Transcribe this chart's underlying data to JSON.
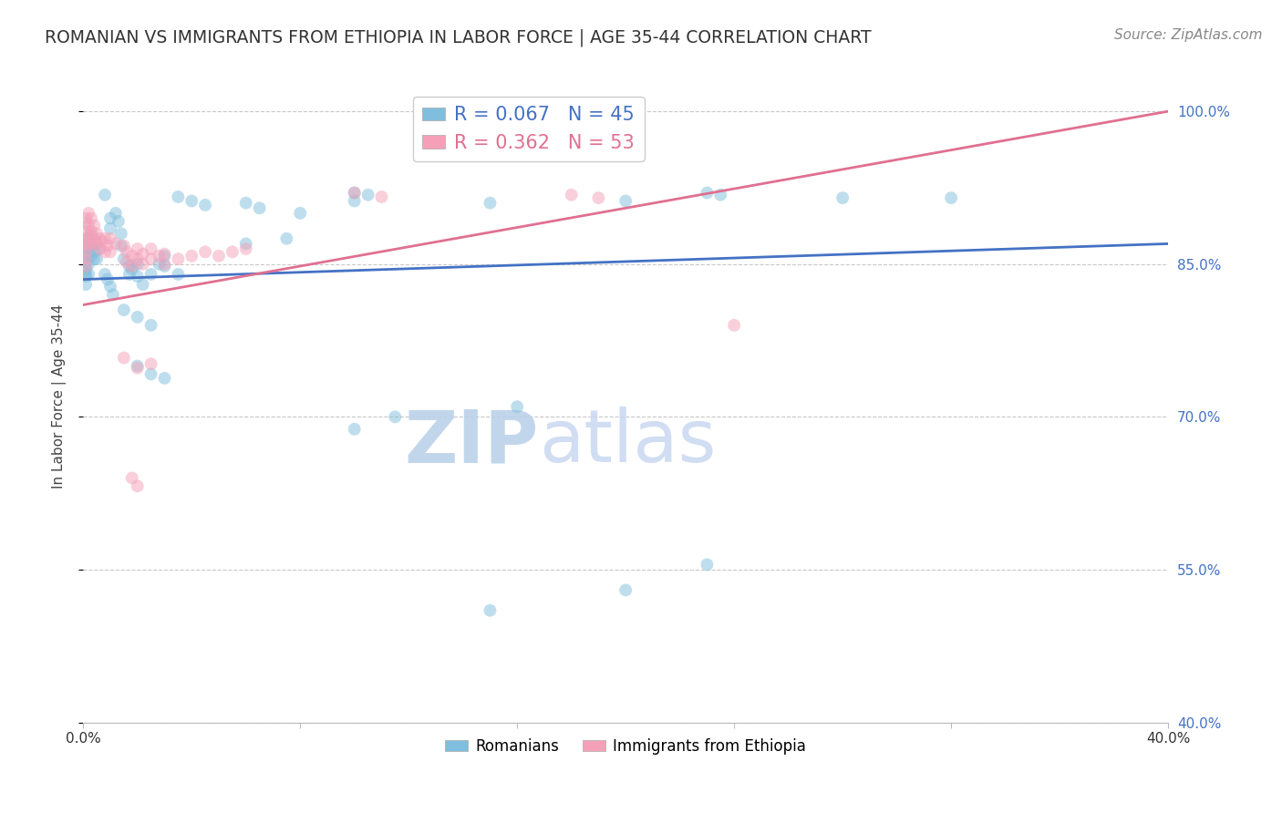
{
  "title": "ROMANIAN VS IMMIGRANTS FROM ETHIOPIA IN LABOR FORCE | AGE 35-44 CORRELATION CHART",
  "source": "Source: ZipAtlas.com",
  "ylabel": "In Labor Force | Age 35-44",
  "watermark_zip": "ZIP",
  "watermark_atlas": "atlas",
  "xlim": [
    0.0,
    0.4
  ],
  "ylim": [
    0.4,
    1.04
  ],
  "yticks": [
    0.4,
    0.55,
    0.7,
    0.85,
    1.0
  ],
  "ytick_labels": [
    "40.0%",
    "55.0%",
    "70.0%",
    "85.0%",
    "100.0%"
  ],
  "blue_points": [
    [
      0.001,
      0.87
    ],
    [
      0.001,
      0.865
    ],
    [
      0.001,
      0.858
    ],
    [
      0.001,
      0.852
    ],
    [
      0.001,
      0.845
    ],
    [
      0.001,
      0.84
    ],
    [
      0.001,
      0.838
    ],
    [
      0.001,
      0.83
    ],
    [
      0.002,
      0.875
    ],
    [
      0.002,
      0.86
    ],
    [
      0.002,
      0.85
    ],
    [
      0.002,
      0.84
    ],
    [
      0.003,
      0.878
    ],
    [
      0.003,
      0.868
    ],
    [
      0.003,
      0.858
    ],
    [
      0.004,
      0.862
    ],
    [
      0.004,
      0.855
    ],
    [
      0.005,
      0.87
    ],
    [
      0.005,
      0.855
    ],
    [
      0.006,
      0.865
    ],
    [
      0.008,
      0.918
    ],
    [
      0.01,
      0.895
    ],
    [
      0.01,
      0.885
    ],
    [
      0.012,
      0.9
    ],
    [
      0.013,
      0.892
    ],
    [
      0.014,
      0.88
    ],
    [
      0.014,
      0.868
    ],
    [
      0.015,
      0.855
    ],
    [
      0.017,
      0.848
    ],
    [
      0.017,
      0.84
    ],
    [
      0.018,
      0.845
    ],
    [
      0.02,
      0.85
    ],
    [
      0.02,
      0.838
    ],
    [
      0.022,
      0.83
    ],
    [
      0.025,
      0.84
    ],
    [
      0.028,
      0.85
    ],
    [
      0.03,
      0.858
    ],
    [
      0.03,
      0.848
    ],
    [
      0.035,
      0.84
    ],
    [
      0.008,
      0.84
    ],
    [
      0.009,
      0.835
    ],
    [
      0.01,
      0.828
    ],
    [
      0.011,
      0.82
    ],
    [
      0.015,
      0.805
    ],
    [
      0.02,
      0.798
    ],
    [
      0.025,
      0.79
    ],
    [
      0.1,
      0.92
    ],
    [
      0.1,
      0.912
    ],
    [
      0.105,
      0.918
    ],
    [
      0.15,
      0.91
    ],
    [
      0.2,
      0.912
    ],
    [
      0.23,
      0.92
    ],
    [
      0.235,
      0.918
    ],
    [
      0.28,
      0.915
    ],
    [
      0.32,
      0.915
    ],
    [
      0.06,
      0.91
    ],
    [
      0.065,
      0.905
    ],
    [
      0.08,
      0.9
    ],
    [
      0.035,
      0.916
    ],
    [
      0.04,
      0.912
    ],
    [
      0.045,
      0.908
    ],
    [
      0.06,
      0.87
    ],
    [
      0.075,
      0.875
    ],
    [
      0.02,
      0.75
    ],
    [
      0.025,
      0.742
    ],
    [
      0.03,
      0.738
    ],
    [
      0.1,
      0.688
    ],
    [
      0.115,
      0.7
    ],
    [
      0.16,
      0.71
    ],
    [
      0.2,
      0.53
    ],
    [
      0.15,
      0.51
    ],
    [
      0.23,
      0.555
    ]
  ],
  "pink_points": [
    [
      0.001,
      0.895
    ],
    [
      0.001,
      0.89
    ],
    [
      0.001,
      0.882
    ],
    [
      0.001,
      0.875
    ],
    [
      0.001,
      0.87
    ],
    [
      0.001,
      0.862
    ],
    [
      0.001,
      0.855
    ],
    [
      0.001,
      0.848
    ],
    [
      0.002,
      0.9
    ],
    [
      0.002,
      0.888
    ],
    [
      0.002,
      0.878
    ],
    [
      0.002,
      0.868
    ],
    [
      0.003,
      0.895
    ],
    [
      0.003,
      0.882
    ],
    [
      0.003,
      0.872
    ],
    [
      0.004,
      0.888
    ],
    [
      0.004,
      0.875
    ],
    [
      0.005,
      0.88
    ],
    [
      0.005,
      0.87
    ],
    [
      0.006,
      0.875
    ],
    [
      0.006,
      0.865
    ],
    [
      0.007,
      0.872
    ],
    [
      0.008,
      0.875
    ],
    [
      0.008,
      0.862
    ],
    [
      0.009,
      0.868
    ],
    [
      0.01,
      0.875
    ],
    [
      0.01,
      0.862
    ],
    [
      0.012,
      0.87
    ],
    [
      0.015,
      0.868
    ],
    [
      0.016,
      0.862
    ],
    [
      0.016,
      0.852
    ],
    [
      0.018,
      0.858
    ],
    [
      0.018,
      0.848
    ],
    [
      0.02,
      0.865
    ],
    [
      0.02,
      0.855
    ],
    [
      0.022,
      0.86
    ],
    [
      0.022,
      0.85
    ],
    [
      0.025,
      0.865
    ],
    [
      0.025,
      0.855
    ],
    [
      0.028,
      0.858
    ],
    [
      0.03,
      0.86
    ],
    [
      0.03,
      0.85
    ],
    [
      0.035,
      0.855
    ],
    [
      0.04,
      0.858
    ],
    [
      0.045,
      0.862
    ],
    [
      0.05,
      0.858
    ],
    [
      0.055,
      0.862
    ],
    [
      0.06,
      0.865
    ],
    [
      0.015,
      0.758
    ],
    [
      0.02,
      0.748
    ],
    [
      0.025,
      0.752
    ],
    [
      0.018,
      0.64
    ],
    [
      0.02,
      0.632
    ],
    [
      0.24,
      0.79
    ],
    [
      0.1,
      0.92
    ],
    [
      0.11,
      0.916
    ],
    [
      0.18,
      0.918
    ],
    [
      0.19,
      0.915
    ]
  ],
  "blue_color": "#7fbfdd",
  "pink_color": "#f4a0b8",
  "blue_line_color": "#4472c4",
  "pink_line_color": "#e07090",
  "background_color": "#ffffff",
  "grid_color": "#c8c8c8",
  "title_fontsize": 13.5,
  "axis_label_fontsize": 11,
  "tick_fontsize": 11,
  "legend_fontsize": 15,
  "source_fontsize": 11,
  "ytick_right_color": "#4472c4",
  "marker_size": 100
}
